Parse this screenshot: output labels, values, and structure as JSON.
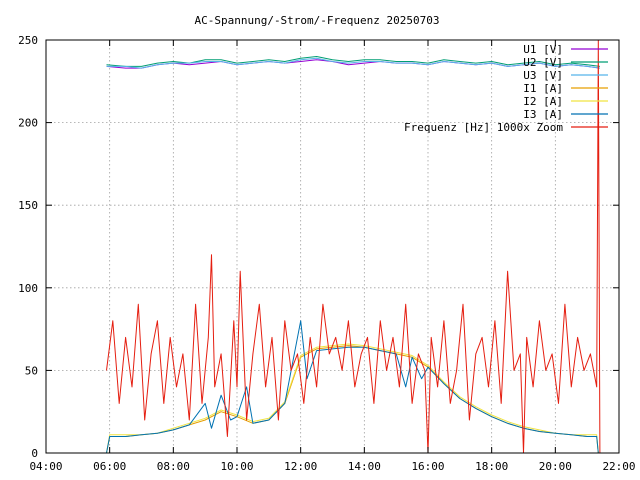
{
  "chart_data": {
    "type": "line",
    "title": "AC-Spannung/-Strom/-Frequenz 20250703",
    "xlabel": "",
    "ylabel": "",
    "x_unit": "hours",
    "xlim": [
      4,
      22
    ],
    "ylim": [
      0,
      250
    ],
    "x_ticks": [
      {
        "value": 4,
        "label": "04:00"
      },
      {
        "value": 6,
        "label": "06:00"
      },
      {
        "value": 8,
        "label": "08:00"
      },
      {
        "value": 10,
        "label": "10:00"
      },
      {
        "value": 12,
        "label": "12:00"
      },
      {
        "value": 14,
        "label": "14:00"
      },
      {
        "value": 16,
        "label": "16:00"
      },
      {
        "value": 18,
        "label": "18:00"
      },
      {
        "value": 20,
        "label": "20:00"
      },
      {
        "value": 22,
        "label": "22:00"
      }
    ],
    "y_ticks": [
      {
        "value": 0,
        "label": "0"
      },
      {
        "value": 50,
        "label": "50"
      },
      {
        "value": 100,
        "label": "100"
      },
      {
        "value": 150,
        "label": "150"
      },
      {
        "value": 200,
        "label": "200"
      },
      {
        "value": 250,
        "label": "250"
      }
    ],
    "grid": true,
    "legend_position": "top-right",
    "series": [
      {
        "name": "U1 [V]",
        "color": "#9400d3",
        "x": [
          5.9,
          6.5,
          7.0,
          7.5,
          8.0,
          8.5,
          9.0,
          9.5,
          10.0,
          10.5,
          11.0,
          11.5,
          12.0,
          12.5,
          13.0,
          13.5,
          14.0,
          14.5,
          15.0,
          15.5,
          16.0,
          16.5,
          17.0,
          17.5,
          18.0,
          18.5,
          19.0,
          19.5,
          20.0,
          20.5,
          21.0,
          21.4
        ],
        "y": [
          234,
          233,
          233,
          235,
          236,
          235,
          236,
          237,
          235,
          236,
          237,
          236,
          237,
          238,
          237,
          235,
          236,
          237,
          236,
          236,
          235,
          237,
          236,
          235,
          236,
          234,
          235,
          236,
          234,
          235,
          234,
          233
        ]
      },
      {
        "name": "U2 [V]",
        "color": "#009e73",
        "x": [
          5.9,
          6.5,
          7.0,
          7.5,
          8.0,
          8.5,
          9.0,
          9.5,
          10.0,
          10.5,
          11.0,
          11.5,
          12.0,
          12.5,
          13.0,
          13.5,
          14.0,
          14.5,
          15.0,
          15.5,
          16.0,
          16.5,
          17.0,
          17.5,
          18.0,
          18.5,
          19.0,
          19.5,
          20.0,
          20.5,
          21.0,
          21.4
        ],
        "y": [
          235,
          234,
          234,
          236,
          237,
          236,
          238,
          238,
          236,
          237,
          238,
          237,
          239,
          240,
          238,
          237,
          238,
          238,
          237,
          237,
          236,
          238,
          237,
          236,
          237,
          235,
          236,
          237,
          235,
          236,
          235,
          234
        ]
      },
      {
        "name": "U3 [V]",
        "color": "#56b4e9",
        "x": [
          5.9,
          6.5,
          7.0,
          7.5,
          8.0,
          8.5,
          9.0,
          9.5,
          10.0,
          10.5,
          11.0,
          11.5,
          12.0,
          12.5,
          13.0,
          13.5,
          14.0,
          14.5,
          15.0,
          15.5,
          16.0,
          16.5,
          17.0,
          17.5,
          18.0,
          18.5,
          19.0,
          19.5,
          20.0,
          20.5,
          21.0,
          21.4
        ],
        "y": [
          234,
          234,
          233,
          235,
          236,
          236,
          237,
          237,
          235,
          236,
          237,
          236,
          238,
          239,
          237,
          236,
          237,
          237,
          236,
          236,
          235,
          237,
          236,
          235,
          236,
          234,
          235,
          236,
          234,
          235,
          234,
          233
        ]
      },
      {
        "name": "I1 [A]",
        "color": "#e69f00",
        "x": [
          5.9,
          6.0,
          6.5,
          7.0,
          7.5,
          8.0,
          8.5,
          9.0,
          9.5,
          10.0,
          10.5,
          11.0,
          11.5,
          12.0,
          12.5,
          13.0,
          13.5,
          14.0,
          14.5,
          15.0,
          15.5,
          16.0,
          16.5,
          17.0,
          17.5,
          18.0,
          18.5,
          19.0,
          19.5,
          20.0,
          20.5,
          21.0,
          21.3,
          21.35
        ],
        "y": [
          0,
          10,
          10,
          11,
          12,
          14,
          17,
          20,
          25,
          22,
          18,
          20,
          30,
          58,
          63,
          64,
          65,
          64,
          62,
          60,
          58,
          52,
          42,
          33,
          27,
          22,
          18,
          15,
          13,
          12,
          11,
          10,
          10,
          0
        ]
      },
      {
        "name": "I2 [A]",
        "color": "#f0e442",
        "x": [
          5.9,
          6.0,
          6.5,
          7.0,
          7.5,
          8.0,
          8.5,
          9.0,
          9.5,
          10.0,
          10.5,
          11.0,
          11.5,
          12.0,
          12.5,
          13.0,
          13.5,
          14.0,
          14.5,
          15.0,
          15.5,
          16.0,
          16.5,
          17.0,
          17.5,
          18.0,
          18.5,
          19.0,
          19.5,
          20.0,
          20.5,
          21.0,
          21.3,
          21.35
        ],
        "y": [
          0,
          11,
          11,
          11,
          12,
          15,
          18,
          21,
          26,
          23,
          19,
          21,
          31,
          59,
          64,
          65,
          66,
          65,
          63,
          61,
          59,
          53,
          43,
          34,
          28,
          23,
          19,
          16,
          14,
          12,
          11,
          11,
          11,
          0
        ]
      },
      {
        "name": "I3 [A]",
        "color": "#0072b2",
        "x": [
          5.9,
          6.0,
          6.5,
          7.0,
          7.5,
          8.0,
          8.5,
          9.0,
          9.2,
          9.5,
          9.8,
          10.0,
          10.3,
          10.5,
          11.0,
          11.5,
          12.0,
          12.2,
          12.5,
          13.0,
          13.5,
          14.0,
          14.5,
          15.0,
          15.3,
          15.5,
          15.8,
          16.0,
          16.5,
          17.0,
          17.5,
          18.0,
          18.5,
          19.0,
          19.5,
          20.0,
          20.5,
          21.0,
          21.3,
          21.35
        ],
        "y": [
          0,
          10,
          10,
          11,
          12,
          14,
          17,
          30,
          15,
          35,
          20,
          22,
          40,
          18,
          20,
          30,
          80,
          45,
          62,
          63,
          64,
          64,
          62,
          60,
          40,
          58,
          45,
          52,
          42,
          33,
          27,
          22,
          18,
          15,
          13,
          12,
          11,
          10,
          10,
          0
        ]
      },
      {
        "name": "Frequenz [Hz] 1000x Zoom",
        "color": "#e51e10",
        "x": [
          5.9,
          6.1,
          6.3,
          6.5,
          6.7,
          6.9,
          7.1,
          7.3,
          7.5,
          7.7,
          7.9,
          8.1,
          8.3,
          8.5,
          8.7,
          8.9,
          9.1,
          9.2,
          9.3,
          9.5,
          9.7,
          9.9,
          10.0,
          10.1,
          10.3,
          10.5,
          10.7,
          10.9,
          11.1,
          11.3,
          11.5,
          11.7,
          11.9,
          12.1,
          12.3,
          12.5,
          12.7,
          12.9,
          13.1,
          13.3,
          13.5,
          13.7,
          13.9,
          14.1,
          14.3,
          14.5,
          14.7,
          14.9,
          15.1,
          15.3,
          15.5,
          15.7,
          15.9,
          16.0,
          16.1,
          16.3,
          16.5,
          16.7,
          16.9,
          17.1,
          17.3,
          17.5,
          17.7,
          17.9,
          18.1,
          18.3,
          18.5,
          18.7,
          18.9,
          19.0,
          19.1,
          19.3,
          19.5,
          19.7,
          19.9,
          20.1,
          20.3,
          20.5,
          20.7,
          20.9,
          21.1,
          21.3,
          21.35,
          21.4
        ],
        "y": [
          50,
          80,
          30,
          70,
          40,
          90,
          20,
          60,
          80,
          30,
          70,
          40,
          60,
          20,
          90,
          30,
          70,
          120,
          40,
          60,
          10,
          80,
          40,
          110,
          20,
          60,
          90,
          40,
          70,
          20,
          80,
          50,
          60,
          30,
          70,
          40,
          90,
          60,
          70,
          50,
          80,
          40,
          60,
          70,
          30,
          80,
          50,
          70,
          40,
          90,
          30,
          60,
          50,
          0,
          70,
          40,
          80,
          30,
          50,
          90,
          20,
          60,
          70,
          40,
          80,
          30,
          110,
          50,
          60,
          0,
          70,
          40,
          80,
          50,
          60,
          30,
          90,
          40,
          70,
          50,
          60,
          40,
          250,
          0
        ]
      }
    ]
  }
}
